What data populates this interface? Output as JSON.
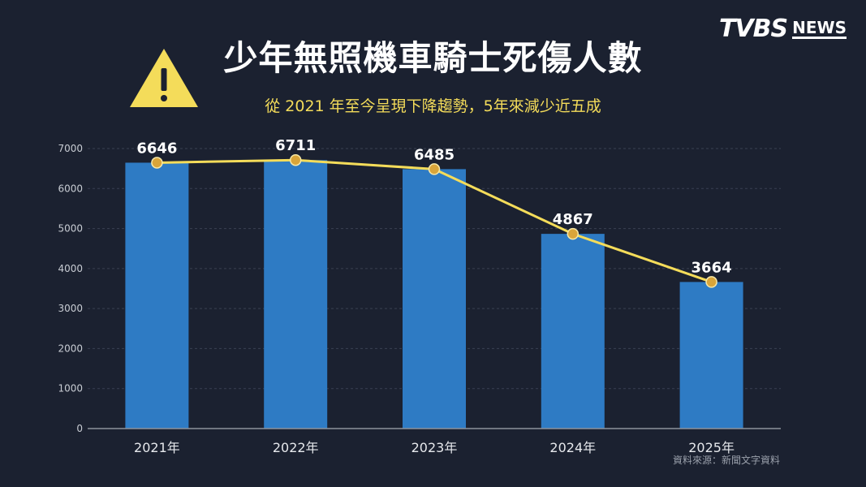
{
  "header": {
    "title": "少年無照機車騎士死傷人數",
    "subtitle": "從 2021 年至今呈現下降趨勢，5年來減少近五成",
    "logo_main": "TVBS",
    "logo_sub": "NEWS"
  },
  "source": "資料來源：新聞文字資料",
  "icons": {
    "warning": "warning-icon"
  },
  "colors": {
    "background": "#1b2130",
    "bar": "#2e7bc4",
    "line": "#f4dc5a",
    "marker": "#d9a53a",
    "accent_text": "#f4dc5a"
  },
  "chart_data": {
    "type": "bar",
    "categories": [
      "2021年",
      "2022年",
      "2023年",
      "2024年",
      "2025年"
    ],
    "values": [
      6646,
      6711,
      6485,
      4867,
      3664
    ],
    "data_labels": [
      "6646",
      "6711",
      "6485",
      "4867",
      "3664"
    ],
    "overlay": "line",
    "title": "少年無照機車騎士死傷人數",
    "subtitle": "從 2021 年至今呈現下降趨勢，5年來減少近五成",
    "xlabel": "",
    "ylabel": "",
    "ylim": [
      0,
      7000
    ],
    "yticks": [
      0,
      1000,
      2000,
      3000,
      4000,
      5000,
      6000,
      7000
    ],
    "ytick_labels": [
      "0",
      "1000",
      "2000",
      "3000",
      "4000",
      "5000",
      "6000",
      "7000"
    ],
    "grid": true,
    "legend": "none"
  }
}
